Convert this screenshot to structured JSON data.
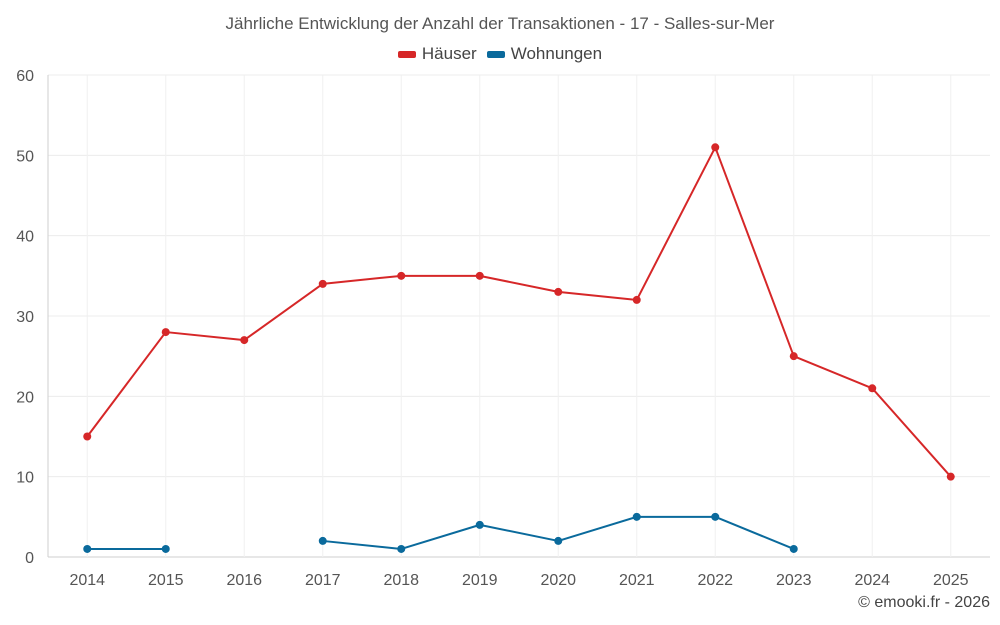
{
  "chart_data": {
    "type": "line",
    "title": "Jährliche Entwicklung der Anzahl der Transaktionen - 17 - Salles-sur-Mer",
    "categories": [
      "2014",
      "2015",
      "2016",
      "2017",
      "2018",
      "2019",
      "2020",
      "2021",
      "2022",
      "2023",
      "2024",
      "2025"
    ],
    "ylim": [
      0,
      60
    ],
    "yticks": [
      0,
      10,
      20,
      30,
      40,
      50,
      60
    ],
    "grid": true,
    "legend_position": "top-center",
    "series": [
      {
        "name": "Häuser",
        "color": "#d62728",
        "values": [
          15,
          28,
          27,
          34,
          35,
          35,
          33,
          32,
          51,
          25,
          21,
          10
        ]
      },
      {
        "name": "Wohnungen",
        "color": "#0a6a9c",
        "values": [
          1,
          1,
          null,
          2,
          1,
          4,
          2,
          5,
          5,
          1,
          null,
          null
        ]
      }
    ]
  },
  "credit": "© emooki.fr - 2026"
}
